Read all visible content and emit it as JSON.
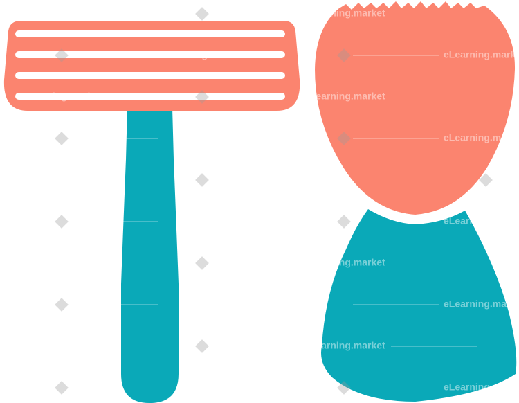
{
  "watermark": "eLearning.market"
}
